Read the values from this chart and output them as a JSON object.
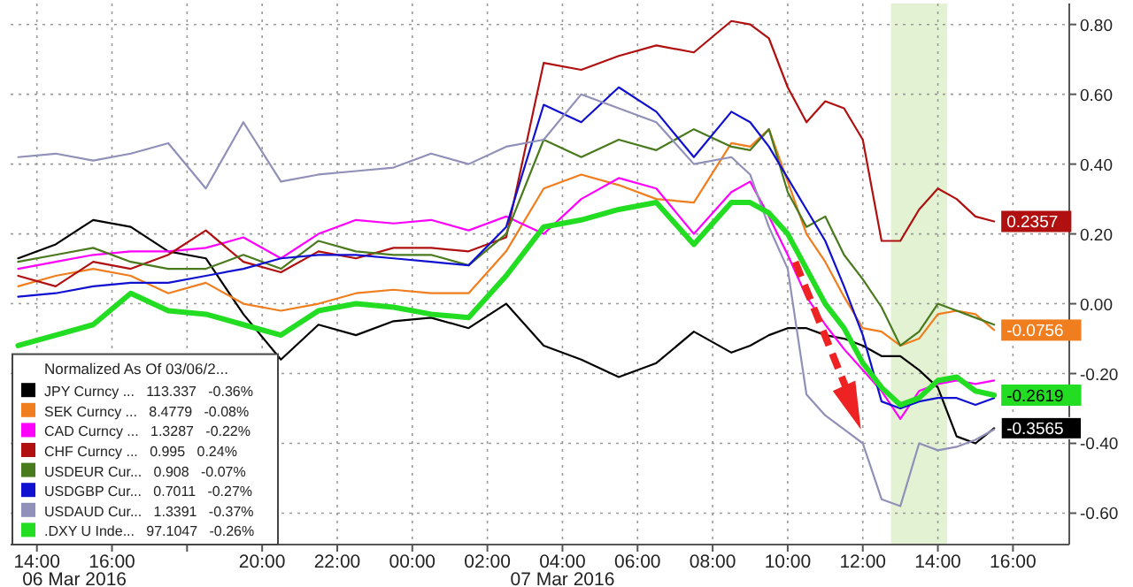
{
  "chart_data": {
    "type": "line",
    "legend_title": "Normalized As Of 03/06/2...",
    "legend": "bottom left",
    "grid": true,
    "line_style": "solid",
    "marker": "none",
    "annotations": [
      "06 Mar 2016",
      "07 Mar 2016"
    ],
    "x": [
      "2016-03-06T13:30",
      "2016-03-06T14:30",
      "2016-03-06T15:30",
      "2016-03-06T16:30",
      "2016-03-06T17:30",
      "2016-03-06T18:30",
      "2016-03-06T19:30",
      "2016-03-06T20:30",
      "2016-03-06T21:30",
      "2016-03-06T22:30",
      "2016-03-06T23:30",
      "2016-03-07T00:30",
      "2016-03-07T01:30",
      "2016-03-07T02:30",
      "2016-03-07T03:30",
      "2016-03-07T04:30",
      "2016-03-07T05:30",
      "2016-03-07T06:30",
      "2016-03-07T07:30",
      "2016-03-07T08:30",
      "2016-03-07T09:00",
      "2016-03-07T09:30",
      "2016-03-07T10:00",
      "2016-03-07T10:30",
      "2016-03-07T11:00",
      "2016-03-07T11:30",
      "2016-03-07T12:00",
      "2016-03-07T12:30",
      "2016-03-07T13:00",
      "2016-03-07T13:30",
      "2016-03-07T14:00",
      "2016-03-07T14:30",
      "2016-03-07T15:00",
      "2016-03-07T15:30"
    ],
    "xlim": [
      "2016-03-06T13:18",
      "2016-03-07T17:30"
    ],
    "xticks": [
      {
        "value": "2016-03-06T14:00",
        "label": "14:00"
      },
      {
        "value": "2016-03-06T16:00",
        "label": "16:00"
      },
      {
        "value": "2016-03-06T18:00",
        "label": null
      },
      {
        "value": "2016-03-06T20:00",
        "label": "20:00"
      },
      {
        "value": "2016-03-06T22:00",
        "label": "22:00"
      },
      {
        "value": "2016-03-07T00:00",
        "label": "00:00"
      },
      {
        "value": "2016-03-07T02:00",
        "label": "02:00"
      },
      {
        "value": "2016-03-07T04:00",
        "label": "04:00"
      },
      {
        "value": "2016-03-07T06:00",
        "label": "06:00"
      },
      {
        "value": "2016-03-07T08:00",
        "label": "08:00"
      },
      {
        "value": "2016-03-07T10:00",
        "label": "10:00"
      },
      {
        "value": "2016-03-07T12:00",
        "label": "12:00"
      },
      {
        "value": "2016-03-07T14:00",
        "label": "14:00"
      },
      {
        "value": "2016-03-07T16:00",
        "label": "16:00"
      }
    ],
    "ylim": [
      -0.69,
      0.86
    ],
    "yticks": [
      {
        "value": -0.6,
        "label": "-0.60"
      },
      {
        "value": -0.4,
        "label": "-0.40"
      },
      {
        "value": -0.2,
        "label": "-0.20"
      },
      {
        "value": 0,
        "label": "0.00"
      },
      {
        "value": 0.2,
        "label": "0.20"
      },
      {
        "value": 0.4,
        "label": "0.40"
      },
      {
        "value": 0.6,
        "label": "0.60"
      },
      {
        "value": 0.8,
        "label": "0.80"
      }
    ],
    "bands": [
      {
        "axis": "x",
        "from": "2016-03-07T12:45",
        "to": "2016-03-07T14:15",
        "color": "#e3f2d3"
      }
    ],
    "series": [
      {
        "name": "JPY Curncy ...   113.337   -0.36%",
        "color": "#000000",
        "values": [
          0.13,
          0.17,
          0.24,
          0.22,
          0.15,
          0.13,
          -0.03,
          -0.16,
          -0.06,
          -0.09,
          -0.05,
          -0.04,
          -0.07,
          0.0,
          -0.12,
          -0.16,
          -0.21,
          -0.17,
          -0.08,
          -0.14,
          -0.12,
          -0.09,
          -0.07,
          -0.07,
          -0.09,
          -0.1,
          -0.12,
          -0.15,
          -0.15,
          -0.19,
          -0.24,
          -0.38,
          -0.4,
          -0.3565
        ],
        "value_labels": [
          null,
          null,
          null,
          null,
          null,
          null,
          null,
          null,
          null,
          null,
          null,
          null,
          null,
          null,
          null,
          null,
          null,
          null,
          null,
          null,
          null,
          null,
          null,
          null,
          null,
          null,
          null,
          null,
          null,
          null,
          null,
          null,
          null,
          "-0.3565"
        ]
      },
      {
        "name": "SEK Curncy ...   8.4779   -0.08%",
        "color": "#f07d1e",
        "values": [
          0.05,
          0.08,
          0.1,
          0.08,
          0.03,
          0.06,
          0.0,
          -0.02,
          0.0,
          0.03,
          0.04,
          0.03,
          0.03,
          0.15,
          0.33,
          0.37,
          0.34,
          0.3,
          0.29,
          0.46,
          0.45,
          0.5,
          0.35,
          0.2,
          0.12,
          0.02,
          -0.07,
          -0.08,
          -0.12,
          -0.1,
          -0.03,
          -0.02,
          -0.03,
          -0.0756
        ],
        "value_labels": [
          null,
          null,
          null,
          null,
          null,
          null,
          null,
          null,
          null,
          null,
          null,
          null,
          null,
          null,
          null,
          null,
          null,
          null,
          null,
          null,
          null,
          null,
          null,
          null,
          null,
          null,
          null,
          null,
          null,
          null,
          null,
          null,
          null,
          "-0.0756"
        ]
      },
      {
        "name": "CAD Curncy ...   1.3287   -0.22%",
        "color": "#ff00ff",
        "values": [
          0.1,
          0.12,
          0.14,
          0.15,
          0.15,
          0.16,
          0.19,
          0.13,
          0.2,
          0.24,
          0.23,
          0.24,
          0.21,
          0.25,
          0.2,
          0.3,
          0.36,
          0.33,
          0.2,
          0.32,
          0.35,
          0.25,
          0.14,
          0.02,
          -0.06,
          -0.13,
          -0.19,
          -0.25,
          -0.33,
          -0.25,
          -0.23,
          -0.22,
          -0.23,
          -0.22
        ]
      },
      {
        "name": "CHF Curncy ...   0.995   0.24%",
        "color": "#b01010",
        "values": [
          0.08,
          0.05,
          0.12,
          0.1,
          0.14,
          0.21,
          0.12,
          0.09,
          0.15,
          0.13,
          0.16,
          0.16,
          0.15,
          0.19,
          0.69,
          0.67,
          0.71,
          0.74,
          0.72,
          0.81,
          0.8,
          0.76,
          0.62,
          0.52,
          0.58,
          0.56,
          0.47,
          0.18,
          0.18,
          0.27,
          0.33,
          0.3,
          0.25,
          0.2357
        ],
        "value_labels": [
          null,
          null,
          null,
          null,
          null,
          null,
          null,
          null,
          null,
          null,
          null,
          null,
          null,
          null,
          null,
          null,
          null,
          null,
          null,
          null,
          null,
          null,
          null,
          null,
          null,
          null,
          null,
          null,
          null,
          null,
          null,
          null,
          null,
          "0.2357"
        ]
      },
      {
        "name": "USDEUR Cur...   0.908   -0.07%",
        "color": "#4a7a1e",
        "values": [
          0.12,
          0.14,
          0.16,
          0.12,
          0.1,
          0.1,
          0.14,
          0.1,
          0.18,
          0.15,
          0.14,
          0.14,
          0.11,
          0.2,
          0.47,
          0.42,
          0.47,
          0.44,
          0.5,
          0.45,
          0.44,
          0.5,
          0.32,
          0.22,
          0.25,
          0.14,
          0.07,
          -0.01,
          -0.12,
          -0.08,
          0.0,
          -0.02,
          -0.04,
          -0.06
        ]
      },
      {
        "name": "USDGBP Cur...   0.7011   -0.27%",
        "color": "#1010d0",
        "values": [
          0.02,
          0.03,
          0.05,
          0.06,
          0.06,
          0.08,
          0.1,
          0.13,
          0.14,
          0.14,
          0.13,
          0.12,
          0.11,
          0.22,
          0.57,
          0.52,
          0.62,
          0.55,
          0.42,
          0.55,
          0.52,
          0.45,
          0.36,
          0.27,
          0.18,
          0.05,
          -0.09,
          -0.28,
          -0.3,
          -0.28,
          -0.27,
          -0.27,
          -0.29,
          -0.27
        ]
      },
      {
        "name": "USDAUD Cur...   1.3391   -0.37%",
        "color": "#9090b8",
        "values": [
          0.42,
          0.43,
          0.41,
          0.43,
          0.46,
          0.33,
          0.52,
          0.35,
          0.37,
          0.38,
          0.39,
          0.43,
          0.4,
          0.45,
          0.47,
          0.6,
          0.56,
          0.52,
          0.4,
          0.42,
          0.37,
          0.22,
          0.1,
          -0.26,
          -0.32,
          -0.36,
          -0.4,
          -0.56,
          -0.58,
          -0.4,
          -0.42,
          -0.41,
          -0.39,
          -0.36
        ]
      },
      {
        "name": ".DXY U Inde...   97.1047   -0.26%",
        "color": "#22dd22",
        "values": [
          -0.12,
          -0.09,
          -0.06,
          0.03,
          -0.02,
          -0.03,
          -0.06,
          -0.09,
          -0.02,
          0.0,
          -0.01,
          -0.03,
          -0.04,
          0.08,
          0.22,
          0.24,
          0.27,
          0.29,
          0.17,
          0.29,
          0.29,
          0.26,
          0.2,
          0.1,
          0.0,
          -0.07,
          -0.17,
          -0.24,
          -0.29,
          -0.27,
          -0.22,
          -0.21,
          -0.25,
          -0.2619
        ],
        "value_labels": [
          null,
          null,
          null,
          null,
          null,
          null,
          null,
          null,
          null,
          null,
          null,
          null,
          null,
          null,
          null,
          null,
          null,
          null,
          null,
          null,
          null,
          null,
          null,
          null,
          null,
          null,
          null,
          null,
          null,
          null,
          null,
          null,
          null,
          "-0.2619"
        ]
      }
    ]
  }
}
